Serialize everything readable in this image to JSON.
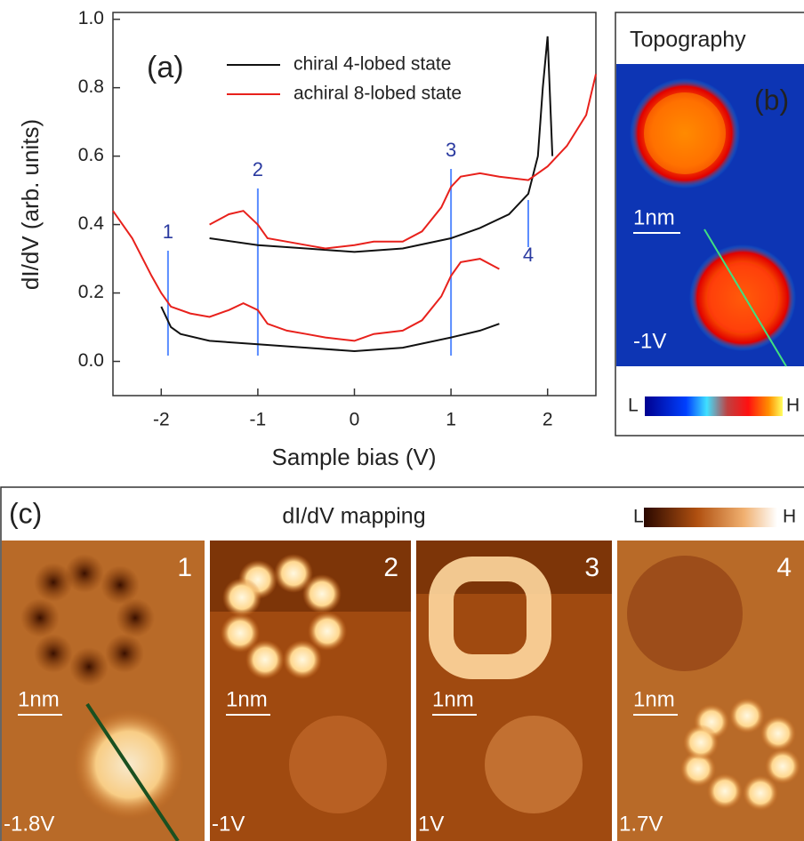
{
  "chart_data": {
    "type": "line",
    "panel_label": "(a)",
    "x_label": "Sample bias (V)",
    "y_label": "dI/dV (arb. units)",
    "xlim": [
      -2.5,
      2.5
    ],
    "ylim": [
      -0.1,
      1.02
    ],
    "xticks": [
      -2,
      -1,
      0,
      1,
      2
    ],
    "yticks": [
      {
        "value": 0,
        "label": "0.0"
      },
      0.2,
      0.4,
      0.6,
      0.8,
      {
        "value": 1,
        "label": "1.0"
      }
    ],
    "series": [
      {
        "name": "chiral 4-lobed state",
        "color": "#111111",
        "x": [
          -2,
          -1.9,
          -1.8,
          -1.5,
          -1,
          -0.5,
          0,
          0.5,
          1,
          1.3,
          1.5,
          null,
          -1.5,
          -1,
          -0.5,
          0,
          0.5,
          1,
          1.3,
          1.6,
          1.8,
          1.9,
          1.95,
          2.0,
          2.05
        ],
        "values": [
          0.16,
          0.1,
          0.08,
          0.06,
          0.05,
          0.04,
          0.03,
          0.04,
          0.07,
          0.09,
          0.11,
          null,
          0.36,
          0.34,
          0.33,
          0.32,
          0.33,
          0.36,
          0.39,
          0.43,
          0.49,
          0.6,
          0.8,
          0.95,
          0.6
        ]
      },
      {
        "name": "achiral 8-lobed state",
        "color": "#e8211c",
        "x": [
          -2.5,
          -2.3,
          -2.1,
          -2,
          -1.9,
          -1.7,
          -1.5,
          -1.3,
          -1.15,
          -1,
          -0.9,
          -0.7,
          -0.5,
          -0.3,
          0,
          0.2,
          0.5,
          0.7,
          0.9,
          1.0,
          1.1,
          1.3,
          1.5,
          null,
          -1.5,
          -1.3,
          -1.15,
          -1,
          -0.9,
          -0.7,
          -0.5,
          -0.3,
          0,
          0.2,
          0.5,
          0.7,
          0.9,
          1.0,
          1.1,
          1.3,
          1.5,
          1.8,
          2.0,
          2.2,
          2.4,
          2.5
        ],
        "values": [
          0.44,
          0.36,
          0.25,
          0.2,
          0.16,
          0.14,
          0.13,
          0.15,
          0.17,
          0.15,
          0.11,
          0.09,
          0.08,
          0.07,
          0.06,
          0.08,
          0.09,
          0.12,
          0.19,
          0.25,
          0.29,
          0.3,
          0.27,
          null,
          0.4,
          0.43,
          0.44,
          0.4,
          0.36,
          0.35,
          0.34,
          0.33,
          0.34,
          0.35,
          0.35,
          0.38,
          0.45,
          0.51,
          0.54,
          0.55,
          0.54,
          0.53,
          0.57,
          0.63,
          0.72,
          0.84
        ]
      }
    ],
    "markers": [
      {
        "label": "1",
        "x": -1.93
      },
      {
        "label": "2",
        "x": -1
      },
      {
        "label": "3",
        "x": 1
      },
      {
        "label": "4",
        "x": 1.8
      }
    ]
  },
  "panel_b": {
    "title": "Topography",
    "label": "(b)",
    "scale": "1nm",
    "bias": "-1V",
    "low": "L",
    "high": "H"
  },
  "panel_c": {
    "label": "(c)",
    "title": "dI/dV mapping",
    "low": "L",
    "high": "H",
    "maps": [
      {
        "number": "1",
        "scale": "1nm",
        "bias": "-1.8V"
      },
      {
        "number": "2",
        "scale": "1nm",
        "bias": "-1V"
      },
      {
        "number": "3",
        "scale": "1nm",
        "bias": "1V"
      },
      {
        "number": "4",
        "scale": "1nm",
        "bias": "1.7V"
      }
    ]
  }
}
